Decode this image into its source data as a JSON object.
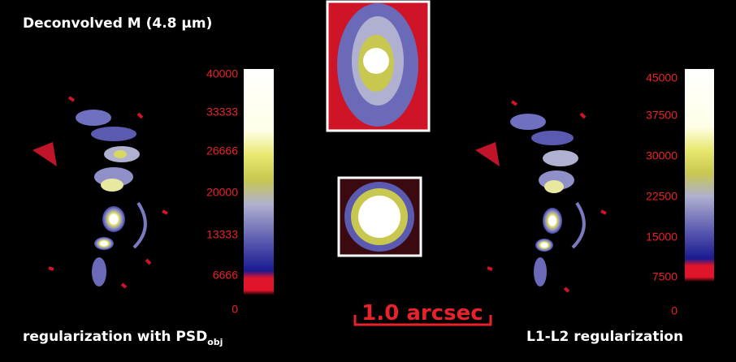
{
  "title": "Deconvolved M (4.8 µm)",
  "left_panel": {
    "caption": "regularization with PSD",
    "caption_subscript": "obj",
    "colorbar_ticks": [
      "40000",
      "33333",
      "26666",
      "20000",
      "13333",
      "6666",
      "0"
    ]
  },
  "right_panel": {
    "caption": "L1-L2 regularization",
    "colorbar_ticks": [
      "45000",
      "37500",
      "30000",
      "22500",
      "15000",
      "7500",
      "0"
    ]
  },
  "scale_bar": "1.0 arcsec"
}
